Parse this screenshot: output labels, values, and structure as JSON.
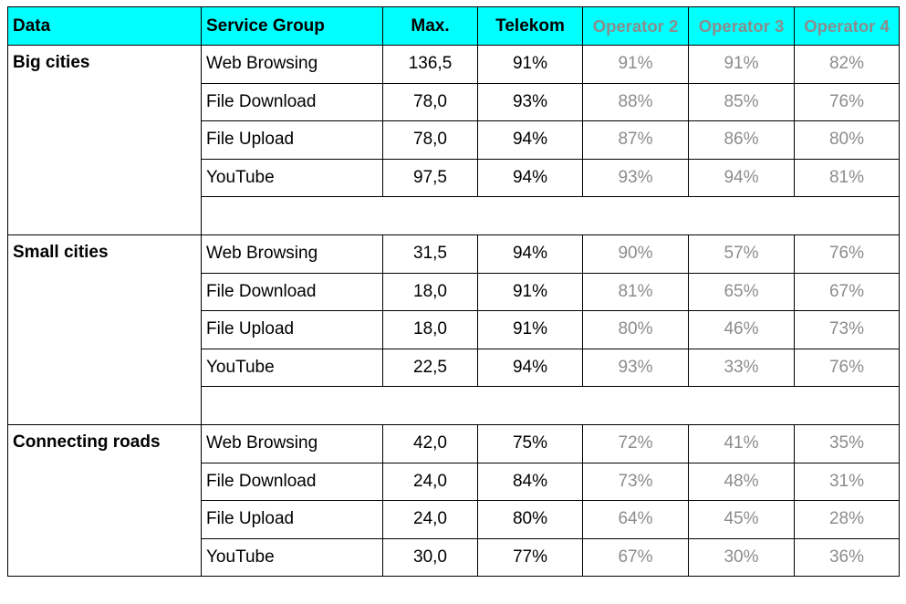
{
  "headers": {
    "data": "Data",
    "service_group": "Service Group",
    "max": "Max.",
    "telekom": "Telekom",
    "op2": "Operator 2",
    "op3": "Operator 3",
    "op4": "Operator 4"
  },
  "groups": [
    {
      "name": "Big cities",
      "rows": [
        {
          "service": "Web Browsing",
          "max": "136,5",
          "telekom": "91%",
          "op2": "91%",
          "op3": "91%",
          "op4": "82%"
        },
        {
          "service": "File Download",
          "max": "78,0",
          "telekom": "93%",
          "op2": "88%",
          "op3": "85%",
          "op4": "76%"
        },
        {
          "service": "File Upload",
          "max": "78,0",
          "telekom": "94%",
          "op2": "87%",
          "op3": "86%",
          "op4": "80%"
        },
        {
          "service": "YouTube",
          "max": "97,5",
          "telekom": "94%",
          "op2": "93%",
          "op3": "94%",
          "op4": "81%"
        }
      ]
    },
    {
      "name": "Small cities",
      "rows": [
        {
          "service": "Web Browsing",
          "max": "31,5",
          "telekom": "94%",
          "op2": "90%",
          "op3": "57%",
          "op4": "76%"
        },
        {
          "service": "File Download",
          "max": "18,0",
          "telekom": "91%",
          "op2": "81%",
          "op3": "65%",
          "op4": "67%"
        },
        {
          "service": "File Upload",
          "max": "18,0",
          "telekom": "91%",
          "op2": "80%",
          "op3": "46%",
          "op4": "73%"
        },
        {
          "service": "YouTube",
          "max": "22,5",
          "telekom": "94%",
          "op2": "93%",
          "op3": "33%",
          "op4": "76%"
        }
      ]
    },
    {
      "name": "Connecting roads",
      "rows": [
        {
          "service": "Web Browsing",
          "max": "42,0",
          "telekom": "75%",
          "op2": "72%",
          "op3": "41%",
          "op4": "35%"
        },
        {
          "service": "File Download",
          "max": "24,0",
          "telekom": "84%",
          "op2": "73%",
          "op3": "48%",
          "op4": "31%"
        },
        {
          "service": "File Upload",
          "max": "24,0",
          "telekom": "80%",
          "op2": "64%",
          "op3": "45%",
          "op4": "28%"
        },
        {
          "service": "YouTube",
          "max": "30,0",
          "telekom": "77%",
          "op2": "67%",
          "op3": "30%",
          "op4": "36%"
        }
      ]
    }
  ],
  "colors": {
    "header_bg": "#00ffff",
    "competitor_text": "#8c8c8c"
  }
}
